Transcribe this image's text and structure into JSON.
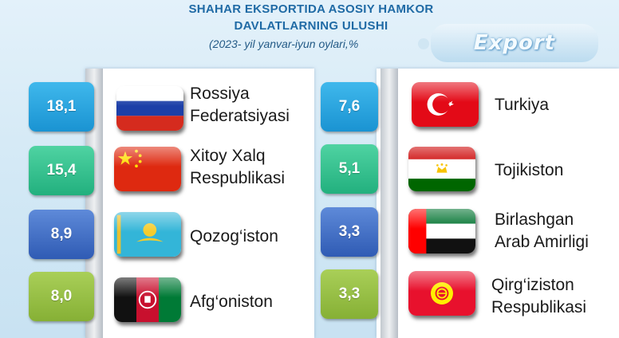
{
  "header": {
    "title_line1": "SHAHAR EKSPORTIDA  ASOSIY  HAMKOR",
    "title_line2": "DAVLATLARNING ULUSHI",
    "subtitle": "(2023- yil yanvar-iyun oylari,%",
    "banner": "Export"
  },
  "colors": {
    "blue_light": "#1ea0dc",
    "green": "#2ec28e",
    "blue_dark": "#3d6bc4",
    "olive": "#93bd43"
  },
  "chart_data": {
    "type": "table",
    "title": "SHAHAR EKSPORTIDA ASOSIY HAMKOR DAVLATLARNING ULUSHI",
    "subtitle": "(2023- yil yanvar-iyun oylari,%",
    "unit": "%",
    "rows": [
      {
        "value_label": "18,1",
        "value": 18.1,
        "country": "Rossiya Federatsiyasi",
        "country_lines": [
          "Rossiya",
          "Federatsiyasi"
        ],
        "flag": "russia-flag"
      },
      {
        "value_label": "15,4",
        "value": 15.4,
        "country": "Xitoy Xalq Respublikasi",
        "country_lines": [
          "Xitoy Xalq",
          "Respublikasi"
        ],
        "flag": "china-flag"
      },
      {
        "value_label": "8,9",
        "value": 8.9,
        "country": "Qozog‘iston",
        "country_lines": [
          "Qozog‘iston"
        ],
        "flag": "kazakhstan-flag"
      },
      {
        "value_label": "8,0",
        "value": 8.0,
        "country": "Afg‘oniston",
        "country_lines": [
          "Afg‘oniston"
        ],
        "flag": "afghanistan-flag"
      },
      {
        "value_label": "7,6",
        "value": 7.6,
        "country": "Turkiya",
        "country_lines": [
          "Turkiya"
        ],
        "flag": "turkey-flag"
      },
      {
        "value_label": "5,1",
        "value": 5.1,
        "country": "Tojikiston",
        "country_lines": [
          "Tojikiston"
        ],
        "flag": "tajikistan-flag"
      },
      {
        "value_label": "3,3",
        "value": 3.3,
        "country": "Birlashgan Arab Amirligi",
        "country_lines": [
          "Birlashgan",
          "Arab Amirligi"
        ],
        "flag": "uae-flag"
      },
      {
        "value_label": "3,3",
        "value": 3.3,
        "country": "Qirg‘iziston Respublikasi",
        "country_lines": [
          "Qirg‘iziston",
          "Respublikasi"
        ],
        "flag": "kyrgyzstan-flag"
      }
    ]
  }
}
